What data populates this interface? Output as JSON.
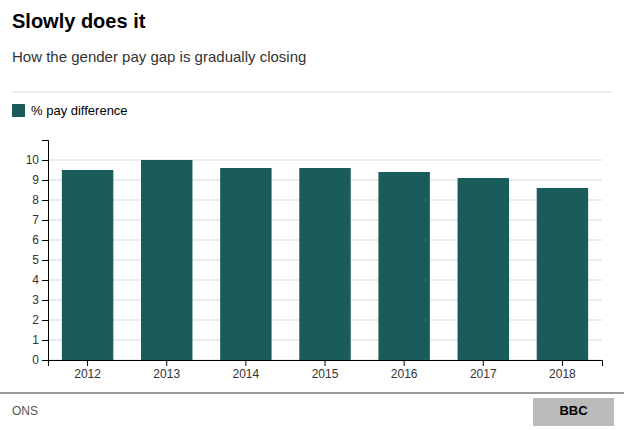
{
  "chart_data": {
    "type": "bar",
    "title": "Slowly does it",
    "subtitle": "How the gender pay gap is gradually closing",
    "categories": [
      "2012",
      "2013",
      "2014",
      "2015",
      "2016",
      "2017",
      "2018"
    ],
    "series": [
      {
        "name": "% pay difference",
        "color": "#1a5c5a",
        "values": [
          9.5,
          10.0,
          9.6,
          9.6,
          9.4,
          9.1,
          8.6
        ]
      }
    ],
    "ylim": [
      0,
      11
    ],
    "yticks": [
      0,
      1,
      2,
      3,
      4,
      5,
      6,
      7,
      8,
      9,
      10
    ],
    "grid": true,
    "legend": "top-left",
    "annotations": [
      "ONS",
      "BBC"
    ]
  }
}
